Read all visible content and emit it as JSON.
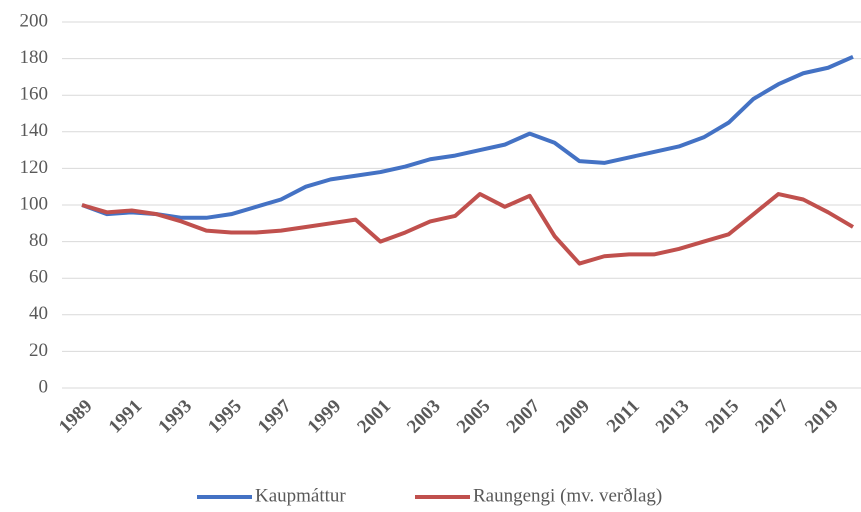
{
  "chart_data": {
    "type": "line",
    "x": [
      1989,
      1990,
      1991,
      1992,
      1993,
      1994,
      1995,
      1996,
      1997,
      1998,
      1999,
      2000,
      2001,
      2002,
      2003,
      2004,
      2005,
      2006,
      2007,
      2008,
      2009,
      2010,
      2011,
      2012,
      2013,
      2014,
      2015,
      2016,
      2017,
      2018,
      2019,
      2020
    ],
    "series": [
      {
        "name": "Kaupmáttur",
        "color": "#4472c4",
        "values": [
          100,
          95,
          96,
          95,
          93,
          93,
          95,
          99,
          103,
          110,
          114,
          116,
          118,
          121,
          125,
          127,
          130,
          133,
          139,
          134,
          124,
          123,
          126,
          129,
          132,
          137,
          145,
          158,
          166,
          172,
          175,
          181
        ]
      },
      {
        "name": "Raungengi (mv. verðlag)",
        "color": "#c0504d",
        "values": [
          100,
          96,
          97,
          95,
          91,
          86,
          85,
          85,
          86,
          88,
          90,
          92,
          80,
          85,
          91,
          94,
          106,
          99,
          105,
          83,
          68,
          72,
          73,
          73,
          76,
          80,
          84,
          95,
          106,
          103,
          96,
          88
        ]
      }
    ],
    "xlim": [
      1989,
      2020
    ],
    "xticks": [
      1989,
      1991,
      1993,
      1995,
      1997,
      1999,
      2001,
      2003,
      2005,
      2007,
      2009,
      2011,
      2013,
      2015,
      2017,
      2019
    ],
    "ylim": [
      0,
      200
    ],
    "yticks": [
      0,
      20,
      40,
      60,
      80,
      100,
      120,
      140,
      160,
      180,
      200
    ],
    "grid": true
  }
}
